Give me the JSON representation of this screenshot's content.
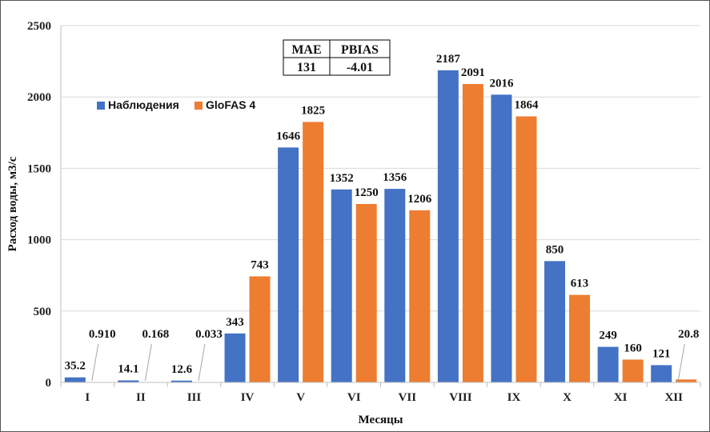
{
  "chart_data": {
    "type": "bar",
    "categories": [
      "I",
      "II",
      "III",
      "IV",
      "V",
      "VI",
      "VII",
      "VIII",
      "IX",
      "X",
      "XI",
      "XII"
    ],
    "series": [
      {
        "name": "Наблюдения",
        "color": "#4472C4",
        "values": [
          35.2,
          14.1,
          12.6,
          343,
          1646,
          1352,
          1356,
          2187,
          2016,
          850,
          249,
          121
        ],
        "labels": [
          "35.2",
          "14.1",
          "12.6",
          "343",
          "1646",
          "1352",
          "1356",
          "2187",
          "2016",
          "850",
          "249",
          "121"
        ]
      },
      {
        "name": "GloFAS 4",
        "color": "#ED7D31",
        "values": [
          0.91,
          0.168,
          0.033,
          743,
          1825,
          1250,
          1206,
          2091,
          1864,
          613,
          160,
          20.8
        ],
        "labels": [
          "0.910",
          "0.168",
          "0.033",
          "743",
          "1825",
          "1250",
          "1206",
          "2091",
          "1864",
          "613",
          "160",
          "20.8"
        ]
      }
    ],
    "xlabel": "Месяцы",
    "ylabel": "Расход воды, м3/с",
    "ylim": [
      0,
      2500
    ],
    "yticks": [
      0,
      500,
      1000,
      1500,
      2000,
      2500
    ],
    "grid": true,
    "legend_position": "top-left",
    "metrics_table": {
      "headers": [
        "MAE",
        "PBIAS"
      ],
      "values": [
        "131",
        "-4.01"
      ]
    }
  }
}
